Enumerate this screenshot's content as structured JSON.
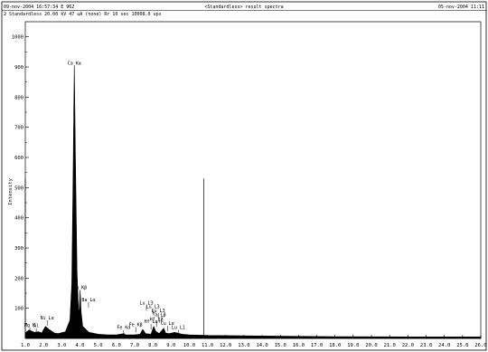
{
  "header": {
    "timestamp_left": "09-nov-2004 16:57:34 E 962",
    "info_line": "2 Standardless  20.00 kV    47 uA (none)      Rr  10 sec   10008.0 ups",
    "title_center": "<Standardless> result spectra",
    "timestamp_right": "05-nov-2004 11:11"
  },
  "colors": {
    "line": "#000000",
    "frame": "#000000",
    "background": "#ffffff"
  },
  "chart_data": {
    "type": "line",
    "title": "<Standardless> result spectra",
    "xlabel": "",
    "ylabel": "Intensity",
    "xlim": [
      1.0,
      26.0
    ],
    "ylim": [
      0,
      1050
    ],
    "x_ticks": [
      "1.0",
      "2.0",
      "3.0",
      "4.0",
      "5.0",
      "6.0",
      "7.0",
      "8.0",
      "9.0",
      "10.0",
      "11.0",
      "12.0",
      "13.0",
      "14.0",
      "15.0",
      "16.0",
      "17.0",
      "18.0",
      "19.0",
      "20.0",
      "21.0",
      "22.0",
      "23.0",
      "24.0",
      "25.0",
      "26.0"
    ],
    "y_ticks": [
      "100",
      "200",
      "300",
      "400",
      "500",
      "600",
      "700",
      "800",
      "900",
      "1000"
    ],
    "markers": [
      1.0,
      10.8
    ],
    "marker_height": 530,
    "spectrum": [
      {
        "x": 1.0,
        "y": 18
      },
      {
        "x": 1.2,
        "y": 28
      },
      {
        "x": 1.5,
        "y": 20
      },
      {
        "x": 1.74,
        "y": 22
      },
      {
        "x": 1.9,
        "y": 18
      },
      {
        "x": 2.1,
        "y": 40
      },
      {
        "x": 2.3,
        "y": 30
      },
      {
        "x": 2.6,
        "y": 18
      },
      {
        "x": 2.8,
        "y": 16
      },
      {
        "x": 3.2,
        "y": 22
      },
      {
        "x": 3.45,
        "y": 60
      },
      {
        "x": 3.55,
        "y": 180
      },
      {
        "x": 3.62,
        "y": 520
      },
      {
        "x": 3.69,
        "y": 905
      },
      {
        "x": 3.76,
        "y": 560
      },
      {
        "x": 3.84,
        "y": 220
      },
      {
        "x": 3.92,
        "y": 95
      },
      {
        "x": 3.96,
        "y": 90
      },
      {
        "x": 4.01,
        "y": 160
      },
      {
        "x": 4.06,
        "y": 90
      },
      {
        "x": 4.15,
        "y": 40
      },
      {
        "x": 4.5,
        "y": 20
      },
      {
        "x": 5.0,
        "y": 14
      },
      {
        "x": 5.5,
        "y": 12
      },
      {
        "x": 6.0,
        "y": 12
      },
      {
        "x": 6.4,
        "y": 16
      },
      {
        "x": 6.5,
        "y": 12
      },
      {
        "x": 7.0,
        "y": 12
      },
      {
        "x": 7.3,
        "y": 14
      },
      {
        "x": 7.45,
        "y": 30
      },
      {
        "x": 7.6,
        "y": 16
      },
      {
        "x": 7.9,
        "y": 14
      },
      {
        "x": 8.05,
        "y": 40
      },
      {
        "x": 8.15,
        "y": 24
      },
      {
        "x": 8.35,
        "y": 16
      },
      {
        "x": 8.6,
        "y": 34
      },
      {
        "x": 8.7,
        "y": 18
      },
      {
        "x": 8.9,
        "y": 16
      },
      {
        "x": 9.2,
        "y": 20
      },
      {
        "x": 9.6,
        "y": 14
      },
      {
        "x": 10.0,
        "y": 12
      },
      {
        "x": 11.0,
        "y": 10
      },
      {
        "x": 14.0,
        "y": 8
      },
      {
        "x": 18.0,
        "y": 6
      },
      {
        "x": 22.0,
        "y": 5
      },
      {
        "x": 26.0,
        "y": 5
      }
    ],
    "peaks": [
      {
        "label": "Ca Kα",
        "x": 3.69,
        "y": 905
      },
      {
        "label": "Ca Kβ",
        "x": 4.01,
        "y": 160
      },
      {
        "label": "Ba Lα",
        "x": 4.47,
        "y": 120
      },
      {
        "label": "Lu L3",
        "x": 7.65,
        "y": 110
      },
      {
        "label": "Lu L3",
        "x": 8.0,
        "y": 98
      },
      {
        "label": "Lu L3",
        "x": 8.3,
        "y": 84
      },
      {
        "label": "Ta Lβ",
        "x": 8.35,
        "y": 70
      },
      {
        "label": "Hf Lβ",
        "x": 8.2,
        "y": 56
      },
      {
        "label": "Hf Lα",
        "x": 7.9,
        "y": 48
      },
      {
        "label": "Fe Kβ",
        "x": 7.06,
        "y": 38
      },
      {
        "label": "Fe Kα",
        "x": 6.4,
        "y": 28
      },
      {
        "label": "Cu Lα",
        "x": 8.8,
        "y": 42
      },
      {
        "label": "Lu L1",
        "x": 9.4,
        "y": 28
      },
      {
        "label": "Ni Lα",
        "x": 2.2,
        "y": 60
      },
      {
        "label": "Mg K",
        "x": 1.25,
        "y": 36
      },
      {
        "label": "Al",
        "x": 1.6,
        "y": 34
      }
    ]
  }
}
